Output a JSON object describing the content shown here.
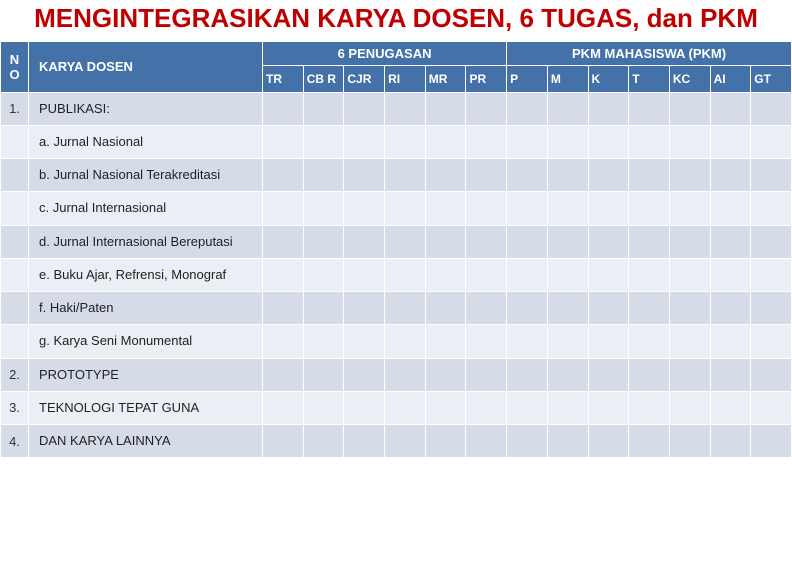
{
  "title": "MENGINTEGRASIKAN KARYA DOSEN, 6 TUGAS, dan PKM",
  "headers": {
    "no": "N O",
    "karya": "KARYA DOSEN",
    "group1": "6  PENUGASAN",
    "group2": "PKM MAHASISWA (PKM)",
    "sub": [
      "TR",
      "CB R",
      "CJR",
      "RI",
      "MR",
      "PR",
      "P",
      "M",
      "K",
      "T",
      "KC",
      "AI",
      "GT"
    ]
  },
  "rows": [
    {
      "no": "1.",
      "karya": "PUBLIKASI:",
      "band": "dark"
    },
    {
      "no": "",
      "karya": "a. Jurnal Nasional",
      "band": "light"
    },
    {
      "no": "",
      "karya": "b. Jurnal Nasional Terakreditasi",
      "band": "dark"
    },
    {
      "no": "",
      "karya": "c. Jurnal Internasional",
      "band": "light"
    },
    {
      "no": "",
      "karya": "d. Jurnal Internasional Bereputasi",
      "band": "dark"
    },
    {
      "no": "",
      "karya": "e. Buku Ajar, Refrensi, Monograf",
      "band": "light"
    },
    {
      "no": "",
      "karya": "f. Haki/Paten",
      "band": "dark"
    },
    {
      "no": "",
      "karya": "g. Karya Seni Monumental",
      "band": "light"
    },
    {
      "no": "2.",
      "karya": "PROTOTYPE",
      "band": "dark"
    },
    {
      "no": "3.",
      "karya": "TEKNOLOGI TEPAT GUNA",
      "band": "light"
    },
    {
      "no": "4.",
      "karya": "DAN KARYA LAINNYA",
      "band": "dark"
    }
  ],
  "colors": {
    "title": "#c00000",
    "header_bg": "#4472a8",
    "header_fg": "#ffffff",
    "band_dark": "#d5dce8",
    "band_light": "#ebeef5",
    "border": "#ffffff"
  },
  "dataColCount": 13
}
